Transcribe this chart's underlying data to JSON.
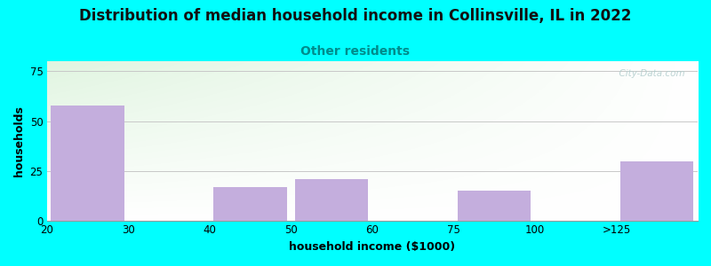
{
  "title": "Distribution of median household income in Collinsville, IL in 2022",
  "subtitle": "Other residents",
  "xlabel": "household income ($1000)",
  "ylabel": "households",
  "background_color": "#00FFFF",
  "bar_color": "#C4AEDD",
  "tick_labels": [
    "20",
    "30",
    "40",
    "50",
    "60",
    "75",
    "100",
    ">125"
  ],
  "bar_heights": [
    58,
    0,
    17,
    21,
    0,
    15,
    0,
    30
  ],
  "ylim": [
    0,
    80
  ],
  "yticks": [
    0,
    25,
    50,
    75
  ],
  "title_fontsize": 12,
  "subtitle_fontsize": 10,
  "subtitle_color": "#008B8B",
  "axis_label_fontsize": 9,
  "watermark": "  City-Data.com"
}
